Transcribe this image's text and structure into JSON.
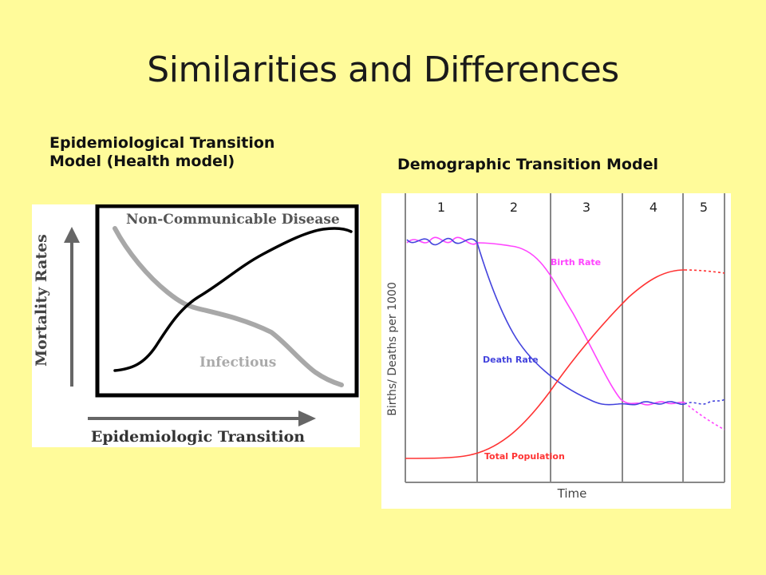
{
  "slide": {
    "title": "Similarities and Differences",
    "left_heading": "Epidemiological Transition Model (Health model)",
    "right_heading": "Demographic Transition Model"
  },
  "epidemiological_diagram": {
    "y_axis_label": "Mortality Rates",
    "x_axis_label": "Epidemiologic Transition",
    "curve_labels": {
      "non_communicable": "Non-Communicable Disease",
      "infectious": "Infectious"
    }
  },
  "demographic_diagram": {
    "y_axis_label": "Births/ Deaths per 1000",
    "x_axis_label": "Time",
    "stages": [
      "1",
      "2",
      "3",
      "4",
      "5"
    ],
    "curve_labels": {
      "birth_rate": "Birth Rate",
      "death_rate": "Death Rate",
      "total_population": "Total Population"
    },
    "colors": {
      "birth_rate": "#FF44FF",
      "death_rate": "#4444DD",
      "total_population": "#FF3333"
    }
  }
}
